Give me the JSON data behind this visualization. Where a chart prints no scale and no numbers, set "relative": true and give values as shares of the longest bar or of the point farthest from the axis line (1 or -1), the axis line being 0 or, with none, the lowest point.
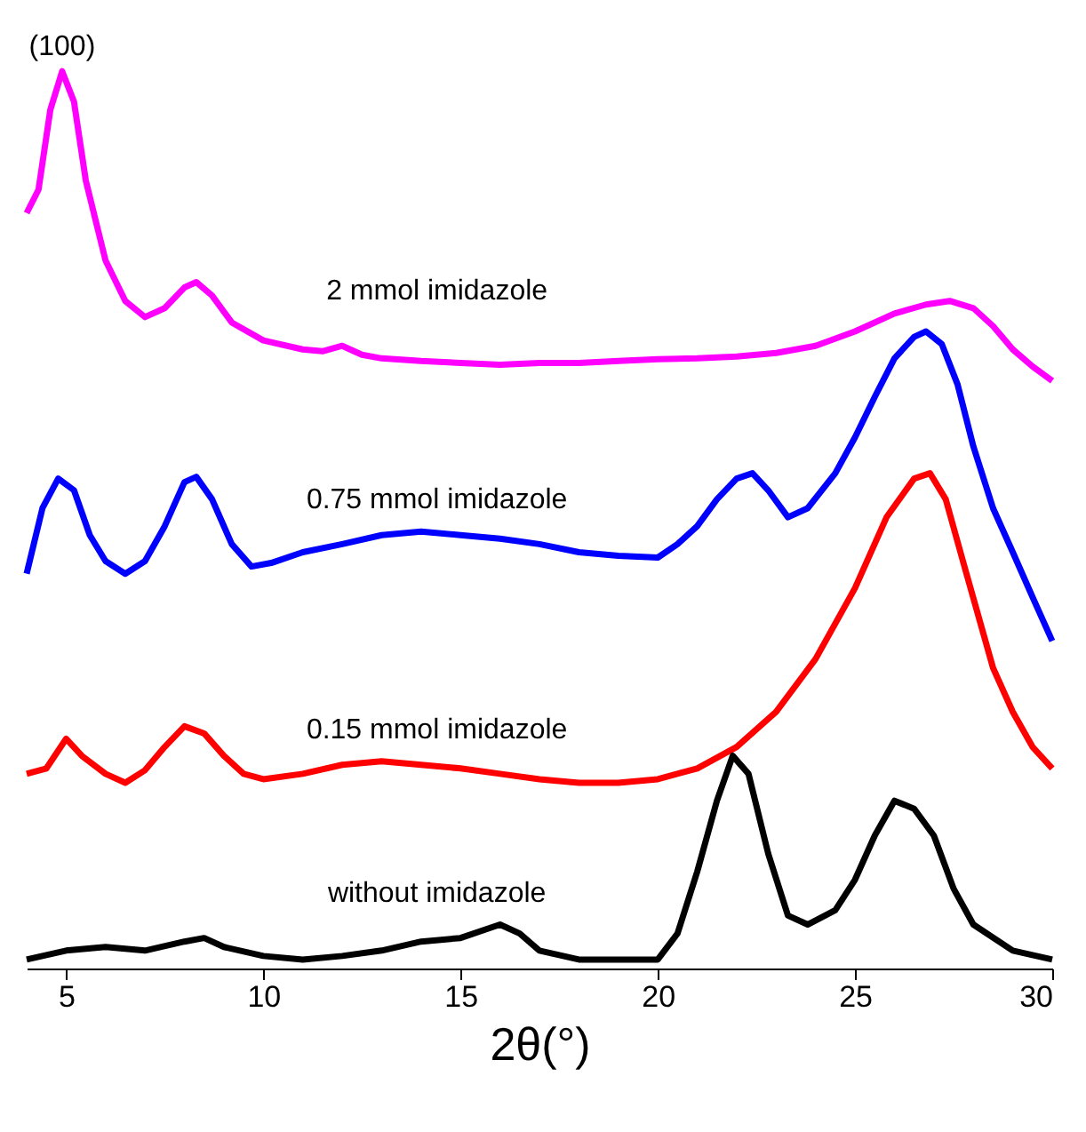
{
  "chart_data": {
    "type": "line",
    "relative": true,
    "xlabel": "2θ(°)",
    "xlim": [
      4,
      30
    ],
    "xticks": [
      5,
      10,
      15,
      20,
      25,
      30
    ],
    "x": [
      4,
      4.3,
      4.6,
      4.9,
      5.2,
      5.5,
      6,
      6.5,
      7,
      7.5,
      8,
      8.3,
      8.7,
      9.2,
      10,
      11,
      11.5,
      12,
      12.5,
      13,
      14,
      15,
      16,
      17,
      18,
      19,
      20,
      21,
      22,
      23,
      24,
      25,
      26,
      26.8,
      27.4,
      28,
      28.5,
      29,
      29.5,
      30
    ],
    "annotations": [
      {
        "text": "(100)",
        "x": 4.9,
        "y": 1.0
      }
    ],
    "series": [
      {
        "name": "2 mmol imidazole",
        "color": "#ff00ff",
        "values": [
          0.842,
          0.868,
          0.957,
          1.0,
          0.966,
          0.878,
          0.789,
          0.744,
          0.726,
          0.736,
          0.759,
          0.765,
          0.75,
          0.72,
          0.7,
          0.69,
          0.688,
          0.694,
          0.684,
          0.68,
          0.677,
          0.675,
          0.673,
          0.675,
          0.675,
          0.677,
          0.679,
          0.68,
          0.682,
          0.686,
          0.694,
          0.71,
          0.73,
          0.74,
          0.744,
          0.736,
          0.716,
          0.69,
          0.671,
          0.655
        ]
      },
      {
        "name": "0.75 mmol imidazole",
        "color": "#0000ff",
        "x": [
          4,
          4.4,
          4.8,
          5.2,
          5.6,
          6,
          6.5,
          7,
          7.5,
          8,
          8.3,
          8.7,
          9.2,
          9.7,
          10.2,
          11,
          12,
          13,
          14,
          15,
          16,
          17,
          18,
          19,
          20,
          20.5,
          21,
          21.5,
          22,
          22.4,
          22.8,
          23.3,
          23.8,
          24.5,
          25,
          25.5,
          26,
          26.5,
          26.8,
          27.2,
          27.6,
          28,
          28.5,
          29,
          29.5,
          30
        ],
        "values": [
          0.44,
          0.513,
          0.546,
          0.533,
          0.483,
          0.454,
          0.44,
          0.454,
          0.493,
          0.542,
          0.548,
          0.523,
          0.473,
          0.448,
          0.452,
          0.464,
          0.473,
          0.483,
          0.487,
          0.483,
          0.479,
          0.473,
          0.464,
          0.46,
          0.458,
          0.473,
          0.493,
          0.523,
          0.546,
          0.552,
          0.533,
          0.503,
          0.513,
          0.552,
          0.592,
          0.637,
          0.68,
          0.704,
          0.71,
          0.696,
          0.651,
          0.582,
          0.513,
          0.464,
          0.414,
          0.365
        ]
      },
      {
        "name": "0.15 mmol imidazole",
        "color": "#ff0000",
        "x": [
          4,
          4.5,
          5,
          5.4,
          6,
          6.5,
          7,
          7.5,
          8,
          8.5,
          9,
          9.5,
          10,
          11,
          12,
          13,
          14,
          15,
          16,
          17,
          18,
          19,
          20,
          21,
          22,
          23,
          24,
          25,
          25.8,
          26.5,
          26.9,
          27.3,
          27.8,
          28.5,
          29,
          29.5,
          30
        ],
        "values": [
          0.217,
          0.223,
          0.256,
          0.237,
          0.217,
          0.207,
          0.221,
          0.247,
          0.27,
          0.262,
          0.237,
          0.217,
          0.211,
          0.217,
          0.227,
          0.231,
          0.227,
          0.223,
          0.217,
          0.211,
          0.207,
          0.207,
          0.211,
          0.223,
          0.247,
          0.286,
          0.345,
          0.424,
          0.503,
          0.546,
          0.552,
          0.523,
          0.444,
          0.335,
          0.286,
          0.247,
          0.223
        ]
      },
      {
        "name": "without imidazole",
        "color": "#000000",
        "x": [
          4,
          5,
          6,
          7,
          8,
          8.5,
          9,
          10,
          11,
          12,
          13,
          14,
          15,
          16,
          16.5,
          17,
          18,
          19,
          20,
          20.5,
          21,
          21.5,
          21.9,
          22.3,
          22.8,
          23.3,
          23.8,
          24.5,
          25,
          25.5,
          26,
          26.5,
          27,
          27.5,
          28,
          29,
          30
        ],
        "values": [
          0.01,
          0.02,
          0.024,
          0.02,
          0.03,
          0.034,
          0.024,
          0.014,
          0.01,
          0.014,
          0.02,
          0.03,
          0.034,
          0.049,
          0.039,
          0.02,
          0.01,
          0.01,
          0.01,
          0.039,
          0.108,
          0.187,
          0.237,
          0.217,
          0.128,
          0.059,
          0.049,
          0.065,
          0.099,
          0.148,
          0.187,
          0.178,
          0.148,
          0.089,
          0.049,
          0.02,
          0.01
        ]
      }
    ]
  }
}
